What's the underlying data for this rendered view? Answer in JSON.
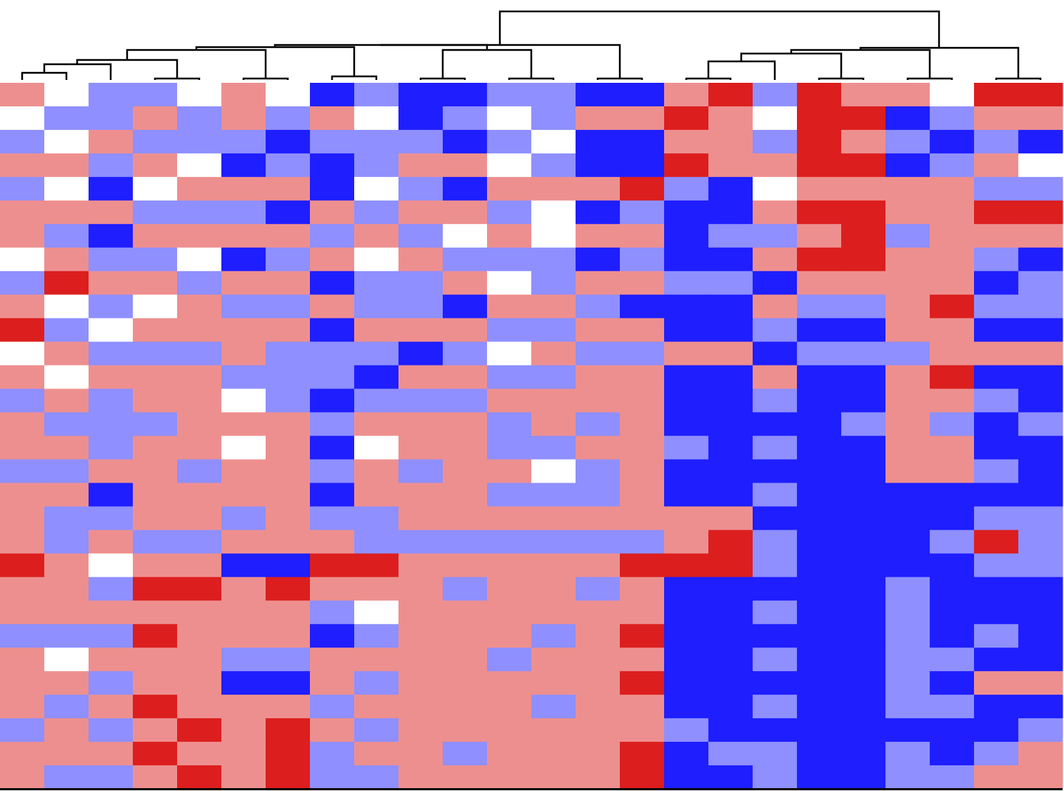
{
  "chart_data": {
    "type": "heatmap",
    "zlim": [
      -2,
      2
    ],
    "colorscale": {
      "low": "#1e1eff",
      "mid": "#ffffff",
      "high": "#dc1e1e"
    },
    "values": [
      [
        1,
        0,
        -1,
        -1,
        0,
        1,
        0,
        -2,
        -1,
        -2,
        -2,
        -1,
        -1,
        -2,
        -2,
        1,
        2,
        -1,
        2,
        1,
        1,
        0,
        2,
        2
      ],
      [
        0,
        -1,
        -1,
        1,
        -1,
        1,
        -1,
        1,
        0,
        -2,
        -1,
        0,
        -1,
        1,
        1,
        2,
        1,
        0,
        2,
        2,
        -2,
        -1,
        1,
        1
      ],
      [
        -1,
        0,
        1,
        -1,
        -1,
        -1,
        -2,
        -1,
        -1,
        -1,
        -2,
        -1,
        0,
        -2,
        -2,
        1,
        1,
        -1,
        2,
        1,
        -1,
        -2,
        -1,
        -2
      ],
      [
        1,
        1,
        -1,
        1,
        0,
        -2,
        -1,
        -2,
        -1,
        1,
        1,
        0,
        -1,
        -2,
        -2,
        2,
        1,
        1,
        2,
        2,
        -2,
        -1,
        1,
        0
      ],
      [
        -1,
        0,
        -2,
        0,
        1,
        1,
        1,
        -2,
        0,
        -1,
        -2,
        1,
        1,
        1,
        2,
        -1,
        -2,
        0,
        1,
        1,
        1,
        1,
        -1,
        -1
      ],
      [
        1,
        1,
        1,
        -1,
        -1,
        -1,
        -2,
        1,
        -1,
        1,
        1,
        -1,
        0,
        -2,
        -1,
        -2,
        -2,
        1,
        2,
        2,
        1,
        1,
        2,
        2
      ],
      [
        1,
        -1,
        -2,
        1,
        1,
        1,
        1,
        -1,
        1,
        -1,
        0,
        1,
        0,
        1,
        1,
        -2,
        -1,
        -1,
        1,
        2,
        -1,
        1,
        1,
        1
      ],
      [
        0,
        1,
        -1,
        -1,
        0,
        -2,
        -1,
        1,
        0,
        1,
        -1,
        -1,
        -1,
        -2,
        -1,
        -2,
        -2,
        1,
        2,
        2,
        1,
        1,
        -1,
        -2
      ],
      [
        -1,
        2,
        1,
        1,
        -1,
        1,
        1,
        -2,
        -1,
        -1,
        1,
        0,
        -1,
        1,
        1,
        -1,
        -1,
        -2,
        1,
        1,
        1,
        1,
        -2,
        -1
      ],
      [
        1,
        0,
        -1,
        0,
        1,
        -1,
        -1,
        1,
        -1,
        -1,
        -2,
        1,
        1,
        -1,
        -2,
        -2,
        -2,
        1,
        -1,
        -1,
        1,
        2,
        -1,
        -1
      ],
      [
        2,
        -1,
        0,
        1,
        1,
        1,
        1,
        -2,
        1,
        1,
        1,
        -1,
        -1,
        1,
        1,
        -2,
        -2,
        -1,
        -2,
        -2,
        1,
        1,
        -2,
        -2
      ],
      [
        0,
        1,
        -1,
        -1,
        -1,
        1,
        -1,
        -1,
        -1,
        -2,
        -1,
        0,
        1,
        -1,
        -1,
        1,
        1,
        -2,
        -1,
        -1,
        -1,
        1,
        1,
        1
      ],
      [
        1,
        0,
        1,
        1,
        1,
        -1,
        -1,
        -1,
        -2,
        1,
        1,
        -1,
        -1,
        1,
        1,
        -2,
        -2,
        1,
        -2,
        -2,
        1,
        2,
        -2,
        -2
      ],
      [
        -1,
        1,
        -1,
        1,
        1,
        0,
        -1,
        -2,
        -1,
        -1,
        -1,
        1,
        1,
        1,
        1,
        -2,
        -2,
        -1,
        -2,
        -2,
        1,
        1,
        -1,
        -2
      ],
      [
        1,
        -1,
        -1,
        -1,
        1,
        1,
        1,
        -1,
        1,
        1,
        1,
        -1,
        1,
        -1,
        1,
        -2,
        -2,
        -2,
        -2,
        -1,
        1,
        -1,
        -2,
        -1
      ],
      [
        1,
        1,
        -1,
        1,
        1,
        0,
        1,
        -2,
        0,
        1,
        1,
        -1,
        -1,
        1,
        1,
        -1,
        -2,
        -1,
        -2,
        -2,
        1,
        1,
        -2,
        -2
      ],
      [
        -1,
        -1,
        1,
        1,
        -1,
        1,
        1,
        -1,
        1,
        -1,
        1,
        1,
        0,
        -1,
        1,
        -2,
        -2,
        -2,
        -2,
        -2,
        1,
        1,
        -1,
        -2
      ],
      [
        1,
        1,
        -2,
        1,
        1,
        1,
        1,
        -2,
        1,
        1,
        1,
        -1,
        -1,
        -1,
        1,
        -2,
        -2,
        -1,
        -2,
        -2,
        -2,
        -2,
        -2,
        -2
      ],
      [
        1,
        -1,
        -1,
        1,
        1,
        -1,
        1,
        -1,
        -1,
        1,
        1,
        1,
        1,
        1,
        1,
        1,
        1,
        -2,
        -2,
        -2,
        -2,
        -2,
        -1,
        -1
      ],
      [
        1,
        -1,
        1,
        -1,
        -1,
        1,
        1,
        1,
        -1,
        -1,
        -1,
        -1,
        -1,
        -1,
        -1,
        1,
        2,
        -1,
        -2,
        -2,
        -2,
        -1,
        2,
        -1
      ],
      [
        2,
        1,
        0,
        1,
        1,
        -2,
        -2,
        2,
        2,
        1,
        1,
        1,
        1,
        1,
        2,
        2,
        2,
        -1,
        -2,
        -2,
        -2,
        -2,
        -1,
        -1
      ],
      [
        1,
        1,
        -1,
        2,
        2,
        1,
        2,
        1,
        1,
        1,
        -1,
        1,
        1,
        -1,
        1,
        -2,
        -2,
        -2,
        -2,
        -2,
        -1,
        -2,
        -2,
        -2
      ],
      [
        1,
        1,
        1,
        1,
        1,
        1,
        1,
        -1,
        0,
        1,
        1,
        1,
        1,
        1,
        1,
        -2,
        -2,
        -1,
        -2,
        -2,
        -1,
        -2,
        -2,
        -2
      ],
      [
        -1,
        -1,
        -1,
        2,
        1,
        1,
        1,
        -2,
        -1,
        1,
        1,
        1,
        -1,
        1,
        2,
        -2,
        -2,
        -2,
        -2,
        -2,
        -1,
        -2,
        -1,
        -2
      ],
      [
        1,
        0,
        1,
        1,
        1,
        -1,
        -1,
        1,
        1,
        1,
        1,
        -1,
        1,
        1,
        1,
        -2,
        -2,
        -1,
        -2,
        -2,
        -1,
        -1,
        -2,
        -2
      ],
      [
        1,
        1,
        -1,
        1,
        1,
        -2,
        -2,
        1,
        -1,
        1,
        1,
        1,
        1,
        1,
        2,
        -2,
        -2,
        -2,
        -2,
        -2,
        -1,
        -2,
        1,
        1
      ],
      [
        1,
        -1,
        1,
        2,
        1,
        1,
        1,
        -1,
        1,
        1,
        1,
        1,
        -1,
        1,
        1,
        -2,
        -2,
        -1,
        -2,
        -2,
        -1,
        -1,
        -2,
        -2
      ],
      [
        -1,
        1,
        -1,
        1,
        2,
        1,
        2,
        1,
        -1,
        1,
        1,
        1,
        1,
        1,
        1,
        -1,
        -2,
        -2,
        -2,
        -2,
        -2,
        -2,
        -2,
        -1
      ],
      [
        1,
        1,
        1,
        2,
        1,
        1,
        2,
        -1,
        1,
        1,
        -1,
        1,
        1,
        1,
        2,
        -2,
        -1,
        -1,
        -2,
        -2,
        -1,
        -2,
        -1,
        1
      ],
      [
        1,
        -1,
        -1,
        1,
        2,
        1,
        2,
        -1,
        -1,
        1,
        1,
        1,
        1,
        1,
        2,
        -2,
        -2,
        -1,
        -2,
        -2,
        -1,
        -1,
        1,
        1
      ]
    ]
  }
}
